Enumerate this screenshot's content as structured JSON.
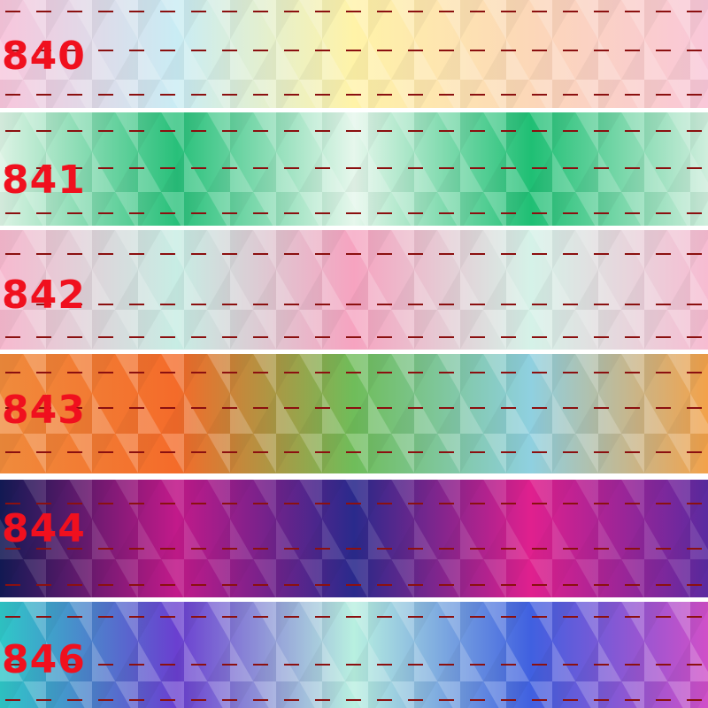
{
  "ribbons": [
    {
      "code": "840",
      "colors": [
        "#f8c6dc",
        "#c9ecf4",
        "#fff3a8",
        "#fcd7b8",
        "#f9c7d9"
      ]
    },
    {
      "code": "841",
      "colors": [
        "#dcf3e4",
        "#28c07a",
        "#e6f7ec",
        "#1fbf74",
        "#cfeedd"
      ]
    },
    {
      "code": "842",
      "colors": [
        "#f7b9cf",
        "#c7ede4",
        "#f6a3c0",
        "#d5f2e8",
        "#f7bcd2"
      ]
    },
    {
      "code": "843",
      "colors": [
        "#f08b3c",
        "#f46b2a",
        "#6fbd5a",
        "#8fd0e0",
        "#f3a24a"
      ]
    },
    {
      "code": "844",
      "colors": [
        "#131a55",
        "#c21a8a",
        "#2a2a8c",
        "#e0208e",
        "#5b2aa0"
      ]
    },
    {
      "code": "846",
      "colors": [
        "#2fc8c8",
        "#6a3fd0",
        "#b8f0e0",
        "#4060e0",
        "#d050c8"
      ]
    }
  ],
  "dash_color": "#8b1010",
  "label_color": "#f0101e"
}
